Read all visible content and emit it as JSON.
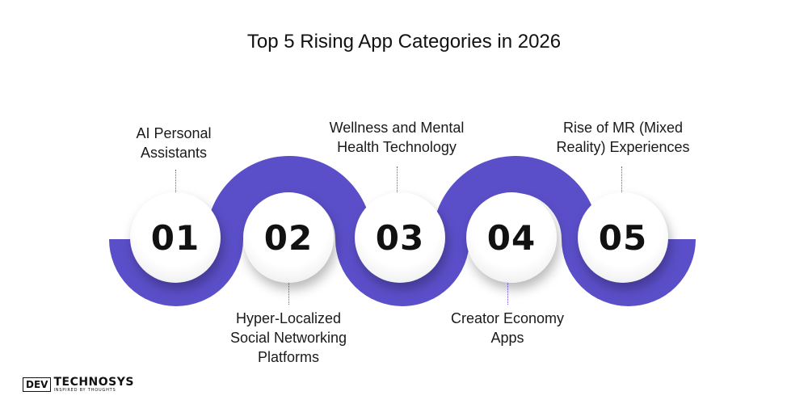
{
  "title": "Top 5 Rising App Categories in 2026",
  "colors": {
    "wave": "#5b4fc9",
    "connector": "#6a5acd"
  },
  "steps": [
    {
      "number": "01",
      "label_lines": [
        "AI Personal",
        "Assistants"
      ],
      "position": "top"
    },
    {
      "number": "02",
      "label_lines": [
        "Hyper-Localized",
        "Social Networking",
        "Platforms"
      ],
      "position": "bottom"
    },
    {
      "number": "03",
      "label_lines": [
        "Wellness and Mental",
        "Health Technology"
      ],
      "position": "top"
    },
    {
      "number": "04",
      "label_lines": [
        "Creator Economy",
        "Apps"
      ],
      "position": "bottom"
    },
    {
      "number": "05",
      "label_lines": [
        "Rise of MR (Mixed",
        "Reality) Experiences"
      ],
      "position": "top"
    }
  ],
  "logo": {
    "mark": "DEV",
    "name": "TECHNOSYS",
    "tagline": "INSPIRED BY THOUGHTS"
  }
}
